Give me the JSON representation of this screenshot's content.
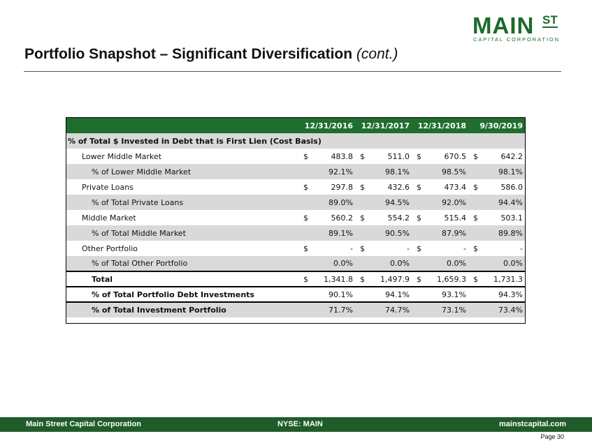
{
  "logo": {
    "main": "MAIN",
    "st": "ST",
    "sub": "CAPITAL CORPORATION"
  },
  "title": {
    "main": "Portfolio Snapshot – Significant Diversification ",
    "cont": "(cont.)"
  },
  "table": {
    "columns": [
      "12/31/2016",
      "12/31/2017",
      "12/31/2018",
      "9/30/2019"
    ],
    "section_label": "% of Total $ Invested in Debt that is First Lien (Cost Basis)",
    "rows": [
      {
        "label": "Lower Middle Market",
        "currency": "$",
        "values": [
          "483.8",
          "511.0",
          "670.5",
          "642.2"
        ]
      },
      {
        "label": "% of Lower Middle Market",
        "currency": "",
        "values": [
          "92.1%",
          "98.1%",
          "98.5%",
          "98.1%"
        ]
      },
      {
        "label": "Private Loans",
        "currency": "$",
        "values": [
          "297.8",
          "432.6",
          "473.4",
          "586.0"
        ]
      },
      {
        "label": "% of Total Private Loans",
        "currency": "",
        "values": [
          "89.0%",
          "94.5%",
          "92.0%",
          "94.4%"
        ]
      },
      {
        "label": "Middle Market",
        "currency": "$",
        "values": [
          "560.2",
          "554.2",
          "515.4",
          "503.1"
        ]
      },
      {
        "label": "% of Total Middle Market",
        "currency": "",
        "values": [
          "89.1%",
          "90.5%",
          "87.9%",
          "89.8%"
        ]
      },
      {
        "label": "Other Portfolio",
        "currency": "$",
        "values": [
          "-",
          "-",
          "-",
          "-"
        ]
      },
      {
        "label": "% of Total Other Portfolio",
        "currency": "",
        "values": [
          "0.0%",
          "0.0%",
          "0.0%",
          "0.0%"
        ]
      },
      {
        "label": "Total",
        "currency": "$",
        "values": [
          "1,341.8",
          "1,497.9",
          "1,659.3",
          "1,731.3"
        ]
      },
      {
        "label": "% of Total Portfolio Debt Investments",
        "currency": "",
        "values": [
          "90.1%",
          "94.1%",
          "93.1%",
          "94.3%"
        ]
      },
      {
        "label": "% of Total Investment Portfolio",
        "currency": "",
        "values": [
          "71.7%",
          "74.7%",
          "73.1%",
          "73.4%"
        ]
      }
    ]
  },
  "footer": {
    "left": "Main Street Capital Corporation",
    "middle": "NYSE: MAIN",
    "right": "mainstcapital.com",
    "page": "Page  30"
  },
  "colors": {
    "brand_green": "#1f6e2e",
    "row_gray": "#d9d9d9",
    "footer_green": "#1f5c2a"
  }
}
